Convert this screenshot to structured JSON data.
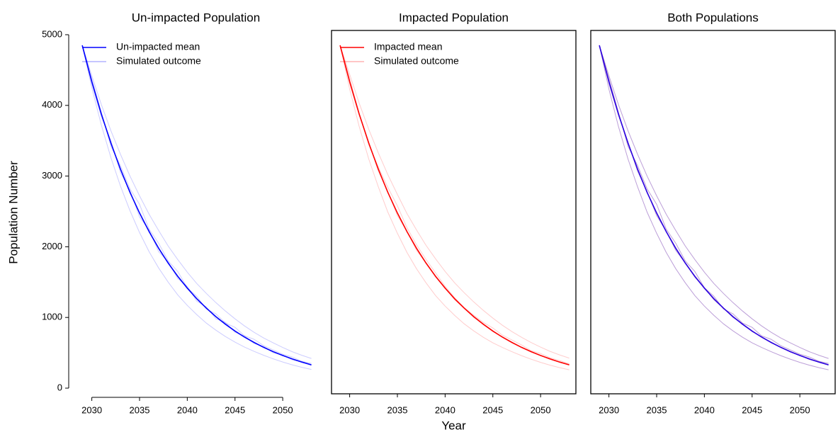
{
  "chart_data": [
    {
      "type": "line",
      "title": "Un-impacted Population",
      "ylabel": "Population Number",
      "x": [
        2029,
        2030,
        2031,
        2032,
        2033,
        2034,
        2035,
        2036,
        2037,
        2038,
        2039,
        2040,
        2041,
        2042,
        2043,
        2044,
        2045,
        2046,
        2047,
        2048,
        2049,
        2050,
        2051,
        2052,
        2053
      ],
      "xlim": [
        2028.1,
        2053.7
      ],
      "xticks": [
        2030,
        2035,
        2040,
        2045,
        2050
      ],
      "ylim": [
        -80,
        5060
      ],
      "yticks": [
        0,
        1000,
        2000,
        3000,
        4000,
        5000
      ],
      "frame": "axes",
      "legend": "upper left",
      "series": [
        {
          "name": "Un-impacted mean",
          "color": "#0000ff",
          "alpha": 1,
          "values": [
            4850,
            4336,
            3877,
            3466,
            3099,
            2770,
            2477,
            2214,
            1980,
            1770,
            1582,
            1415,
            1265,
            1131,
            1011,
            904,
            808,
            722,
            646,
            577,
            516,
            462,
            413,
            369,
            330
          ]
        },
        {
          "name": "Simulated outcome",
          "color": "#0000ff",
          "alpha": 0.2,
          "runs": [
            [
              4850,
              4420,
              4010,
              3640,
              3310,
              3000,
              2720,
              2460,
              2230,
              2010,
              1820,
              1640,
              1480,
              1340,
              1210,
              1090,
              980,
              880,
              790,
              710,
              640,
              575,
              515,
              465,
              420
            ],
            [
              4850,
              4250,
              3720,
              3260,
              2860,
              2510,
              2200,
              1930,
              1700,
              1500,
              1320,
              1170,
              1040,
              920,
              820,
              730,
              650,
              580,
              520,
              465,
              415,
              370,
              330,
              295,
              265
            ],
            [
              4850,
              4380,
              3900,
              3420,
              3150,
              2820,
              2600,
              2250,
              2050,
              1800,
              1650,
              1420,
              1300,
              1120,
              1050,
              920,
              860,
              740,
              690,
              600,
              540,
              480,
              440,
              380,
              350
            ],
            [
              4850,
              4300,
              3840,
              3500,
              3050,
              2800,
              2420,
              2240,
              1930,
              1790,
              1550,
              1440,
              1230,
              1150,
              980,
              930,
              790,
              740,
              630,
              590,
              500,
              470,
              400,
              375,
              320
            ]
          ]
        }
      ]
    },
    {
      "type": "line",
      "title": "Impacted Population",
      "xlabel": "Year",
      "x": [
        2029,
        2030,
        2031,
        2032,
        2033,
        2034,
        2035,
        2036,
        2037,
        2038,
        2039,
        2040,
        2041,
        2042,
        2043,
        2044,
        2045,
        2046,
        2047,
        2048,
        2049,
        2050,
        2051,
        2052,
        2053
      ],
      "xlim": [
        2028.1,
        2053.7
      ],
      "xticks": [
        2030,
        2035,
        2040,
        2045,
        2050
      ],
      "ylim": [
        -80,
        5060
      ],
      "frame": "box",
      "legend": "upper left",
      "series": [
        {
          "name": "Impacted mean",
          "color": "#ff0000",
          "alpha": 1,
          "values": [
            4850,
            4336,
            3877,
            3466,
            3099,
            2770,
            2477,
            2214,
            1980,
            1770,
            1582,
            1415,
            1265,
            1131,
            1011,
            904,
            808,
            722,
            646,
            577,
            516,
            462,
            413,
            369,
            330
          ]
        },
        {
          "name": "Simulated outcome",
          "color": "#ff0000",
          "alpha": 0.2,
          "runs": [
            [
              4850,
              4440,
              4030,
              3660,
              3330,
              3020,
              2740,
              2470,
              2240,
              2020,
              1830,
              1650,
              1490,
              1350,
              1220,
              1100,
              990,
              890,
              800,
              720,
              645,
              580,
              520,
              470,
              425
            ],
            [
              4850,
              4230,
              3700,
              3240,
              2850,
              2490,
              2190,
              1920,
              1690,
              1490,
              1310,
              1160,
              1030,
              910,
              810,
              720,
              640,
              575,
              515,
              460,
              410,
              365,
              325,
              290,
              260
            ],
            [
              4850,
              4390,
              3880,
              3440,
              3130,
              2840,
              2580,
              2270,
              2030,
              1820,
              1630,
              1440,
              1280,
              1140,
              1030,
              930,
              850,
              750,
              680,
              610,
              530,
              490,
              430,
              390,
              345
            ],
            [
              4850,
              4310,
              3860,
              3480,
              3070,
              2780,
              2440,
              2220,
              1950,
              1770,
              1570,
              1420,
              1250,
              1130,
              1000,
              910,
              800,
              730,
              640,
              580,
              510,
              465,
              405,
              370,
              325
            ]
          ]
        }
      ]
    },
    {
      "type": "line",
      "title": "Both Populations",
      "x": [
        2029,
        2030,
        2031,
        2032,
        2033,
        2034,
        2035,
        2036,
        2037,
        2038,
        2039,
        2040,
        2041,
        2042,
        2043,
        2044,
        2045,
        2046,
        2047,
        2048,
        2049,
        2050,
        2051,
        2052,
        2053
      ],
      "xlim": [
        2028.1,
        2053.7
      ],
      "xticks": [
        2030,
        2035,
        2040,
        2045,
        2050
      ],
      "ylim": [
        -80,
        5060
      ],
      "frame": "box",
      "series": [
        {
          "color": "#2a00e0",
          "alpha": 1,
          "values": [
            4850,
            4336,
            3877,
            3466,
            3099,
            2770,
            2477,
            2214,
            1980,
            1770,
            1582,
            1415,
            1265,
            1131,
            1011,
            904,
            808,
            722,
            646,
            577,
            516,
            462,
            413,
            369,
            330
          ]
        },
        {
          "color": "#6a2aa8",
          "alpha": 0.45,
          "runs": [
            [
              4850,
              4420,
              4010,
              3640,
              3310,
              3000,
              2720,
              2460,
              2230,
              2010,
              1820,
              1640,
              1480,
              1340,
              1210,
              1090,
              980,
              880,
              790,
              710,
              640,
              575,
              515,
              465,
              420
            ],
            [
              4850,
              4230,
              3700,
              3240,
              2850,
              2490,
              2190,
              1920,
              1690,
              1490,
              1310,
              1160,
              1030,
              910,
              810,
              720,
              640,
              575,
              515,
              460,
              410,
              365,
              325,
              290,
              260
            ],
            [
              4850,
              4380,
              3900,
              3420,
              3150,
              2820,
              2600,
              2250,
              2050,
              1800,
              1650,
              1420,
              1300,
              1120,
              1050,
              920,
              860,
              740,
              690,
              600,
              540,
              480,
              440,
              380,
              350
            ],
            [
              4850,
              4310,
              3860,
              3480,
              3070,
              2780,
              2440,
              2220,
              1950,
              1770,
              1570,
              1420,
              1250,
              1130,
              1000,
              910,
              800,
              730,
              640,
              580,
              510,
              465,
              405,
              370,
              325
            ]
          ]
        }
      ]
    }
  ]
}
